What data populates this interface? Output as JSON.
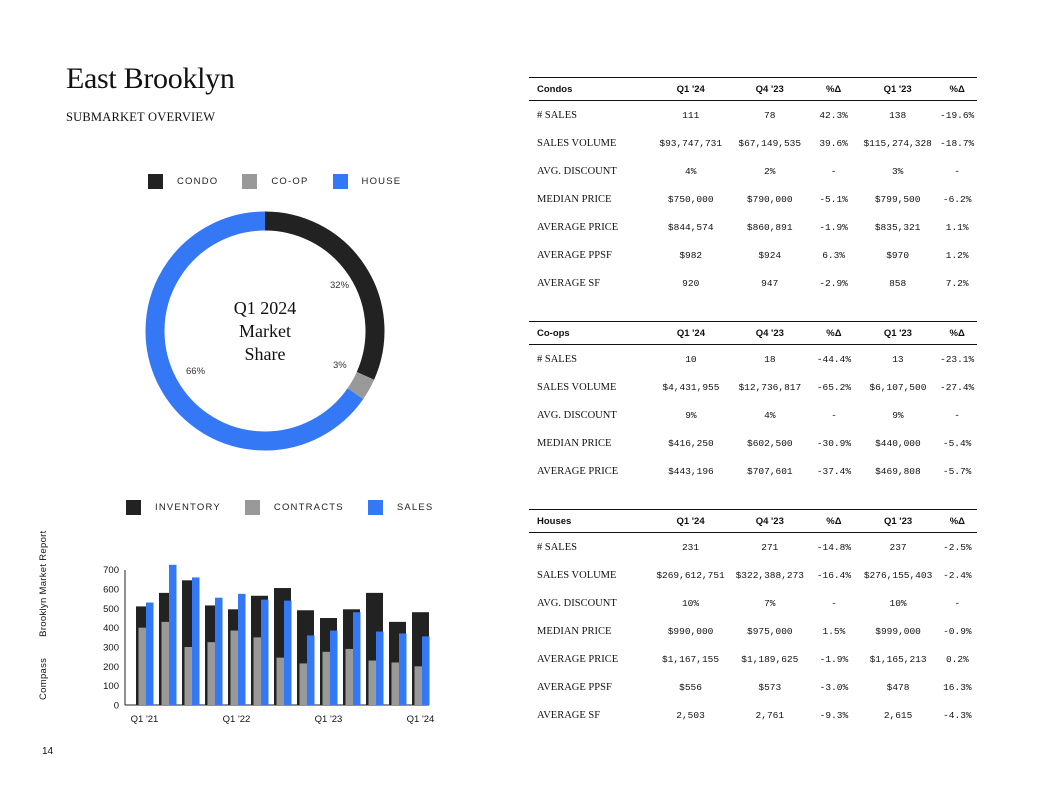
{
  "header": {
    "title": "East Brooklyn",
    "subtitle": "SUBMARKET OVERVIEW"
  },
  "sidebar": {
    "brand": "Compass",
    "report": "Brooklyn Market Report"
  },
  "page_number": "14",
  "colors": {
    "condo": "#222222",
    "coop": "#999999",
    "house": "#3478f6",
    "inventory": "#222222",
    "contracts": "#999999",
    "sales": "#3478f6"
  },
  "donut_legend": {
    "condo": "CONDO",
    "coop": "CO-OP",
    "house": "HOUSE"
  },
  "donut_center": {
    "line1": "Q1 2024",
    "line2": "Market",
    "line3": "Share"
  },
  "bar_legend": {
    "inventory": "INVENTORY",
    "contracts": "CONTRACTS",
    "sales": "SALES"
  },
  "chart_data": [
    {
      "type": "pie",
      "title": "Q1 2024 Market Share",
      "labels": [
        "CONDO",
        "CO-OP",
        "HOUSE"
      ],
      "values": [
        32,
        3,
        66
      ],
      "value_labels": [
        "32%",
        "3%",
        "66%"
      ]
    },
    {
      "type": "bar",
      "categories": [
        "Q1 '21",
        "Q2 '21",
        "Q3 '21",
        "Q4 '21",
        "Q1 '22",
        "Q2 '22",
        "Q3 '22",
        "Q4 '22",
        "Q1 '23",
        "Q2 '23",
        "Q3 '23",
        "Q4 '23",
        "Q1 '24"
      ],
      "x_tick_labels": [
        "Q1 '21",
        "Q1 '22",
        "Q1 '23",
        "Q1 '24"
      ],
      "series": [
        {
          "name": "INVENTORY",
          "values": [
            510,
            580,
            645,
            515,
            495,
            565,
            605,
            490,
            450,
            495,
            580,
            430,
            480
          ]
        },
        {
          "name": "CONTRACTS",
          "values": [
            400,
            430,
            300,
            325,
            385,
            350,
            245,
            215,
            275,
            290,
            230,
            220,
            200
          ]
        },
        {
          "name": "SALES",
          "values": [
            530,
            725,
            660,
            555,
            575,
            545,
            540,
            360,
            385,
            480,
            380,
            370,
            355
          ]
        }
      ],
      "ylim": [
        0,
        750
      ],
      "yticks": [
        "0",
        "100",
        "200",
        "300",
        "400",
        "500",
        "600",
        "700"
      ],
      "grid": false
    }
  ],
  "tables": [
    {
      "name": "Condos",
      "columns": [
        "Q1 '24",
        "Q4 '23",
        "%Δ",
        "Q1 '23",
        "%Δ"
      ],
      "rows": [
        [
          "# SALES",
          "111",
          "78",
          "42.3%",
          "138",
          "-19.6%"
        ],
        [
          "SALES VOLUME",
          "$93,747,731",
          "$67,149,535",
          "39.6%",
          "$115,274,328",
          "-18.7%"
        ],
        [
          "AVG. DISCOUNT",
          "4%",
          "2%",
          "-",
          "3%",
          "-"
        ],
        [
          "MEDIAN PRICE",
          "$750,000",
          "$790,000",
          "-5.1%",
          "$799,500",
          "-6.2%"
        ],
        [
          "AVERAGE PRICE",
          "$844,574",
          "$860,891",
          "-1.9%",
          "$835,321",
          "1.1%"
        ],
        [
          "AVERAGE PPSF",
          "$982",
          "$924",
          "6.3%",
          "$970",
          "1.2%"
        ],
        [
          "AVERAGE SF",
          "920",
          "947",
          "-2.9%",
          "858",
          "7.2%"
        ]
      ]
    },
    {
      "name": "Co-ops",
      "columns": [
        "Q1 '24",
        "Q4 '23",
        "%Δ",
        "Q1 '23",
        "%Δ"
      ],
      "rows": [
        [
          "# SALES",
          "10",
          "18",
          "-44.4%",
          "13",
          "-23.1%"
        ],
        [
          "SALES VOLUME",
          "$4,431,955",
          "$12,736,817",
          "-65.2%",
          "$6,107,500",
          "-27.4%"
        ],
        [
          "AVG. DISCOUNT",
          "9%",
          "4%",
          "-",
          "9%",
          "-"
        ],
        [
          "MEDIAN PRICE",
          "$416,250",
          "$602,500",
          "-30.9%",
          "$440,000",
          "-5.4%"
        ],
        [
          "AVERAGE PRICE",
          "$443,196",
          "$707,601",
          "-37.4%",
          "$469,808",
          "-5.7%"
        ]
      ]
    },
    {
      "name": "Houses",
      "columns": [
        "Q1 '24",
        "Q4 '23",
        "%Δ",
        "Q1 '23",
        "%Δ"
      ],
      "rows": [
        [
          "# SALES",
          "231",
          "271",
          "-14.8%",
          "237",
          "-2.5%"
        ],
        [
          "SALES VOLUME",
          "$269,612,751",
          "$322,388,273",
          "-16.4%",
          "$276,155,403",
          "-2.4%"
        ],
        [
          "AVG. DISCOUNT",
          "10%",
          "7%",
          "-",
          "10%",
          "-"
        ],
        [
          "MEDIAN PRICE",
          "$990,000",
          "$975,000",
          "1.5%",
          "$999,000",
          "-0.9%"
        ],
        [
          "AVERAGE PRICE",
          "$1,167,155",
          "$1,189,625",
          "-1.9%",
          "$1,165,213",
          "0.2%"
        ],
        [
          "AVERAGE PPSF",
          "$556",
          "$573",
          "-3.0%",
          "$478",
          "16.3%"
        ],
        [
          "AVERAGE SF",
          "2,503",
          "2,761",
          "-9.3%",
          "2,615",
          "-4.3%"
        ]
      ]
    }
  ]
}
